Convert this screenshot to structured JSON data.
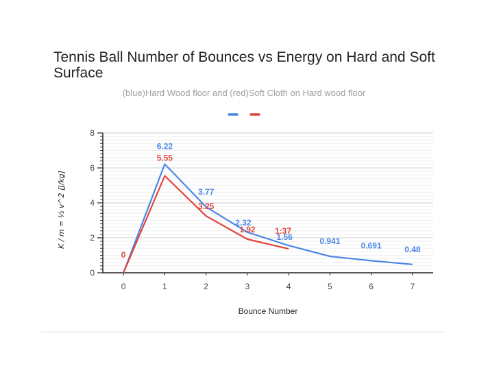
{
  "chart_data": {
    "type": "line",
    "title": "Tennis Ball Number of Bounces vs Energy on Hard and Soft Surface",
    "subtitle": "(blue)Hard Wood floor and (red)Soft Cloth on Hard wood floor",
    "xlabel": "Bounce Number",
    "ylabel": "K / m = ½ v^2  [J/kg]",
    "xlim": [
      -0.5,
      7.5
    ],
    "ylim": [
      0,
      8
    ],
    "x_ticks": [
      "0",
      "1",
      "2",
      "3",
      "4",
      "5",
      "6",
      "7"
    ],
    "y_ticks": [
      "0",
      "2",
      "4",
      "6",
      "8"
    ],
    "legend_position": "top-center",
    "series": [
      {
        "name": "Hard Wood floor",
        "color": "#4a86e8",
        "x": [
          0,
          1,
          2,
          3,
          4,
          5,
          6,
          7
        ],
        "values": [
          0,
          6.22,
          3.77,
          2.32,
          1.56,
          0.941,
          0.691,
          0.48
        ],
        "labels": [
          "",
          "6.22",
          "3.77",
          "2.32",
          "1.56",
          "0.941",
          "0.691",
          "0.48"
        ]
      },
      {
        "name": "Soft Cloth on Hard wood floor",
        "color": "#e0453c",
        "x": [
          0,
          1,
          2,
          3,
          4
        ],
        "values": [
          0,
          5.55,
          3.25,
          1.92,
          1.37
        ],
        "labels": [
          "0",
          "5.55",
          "3.25",
          "1.92",
          "1:37"
        ]
      }
    ]
  }
}
